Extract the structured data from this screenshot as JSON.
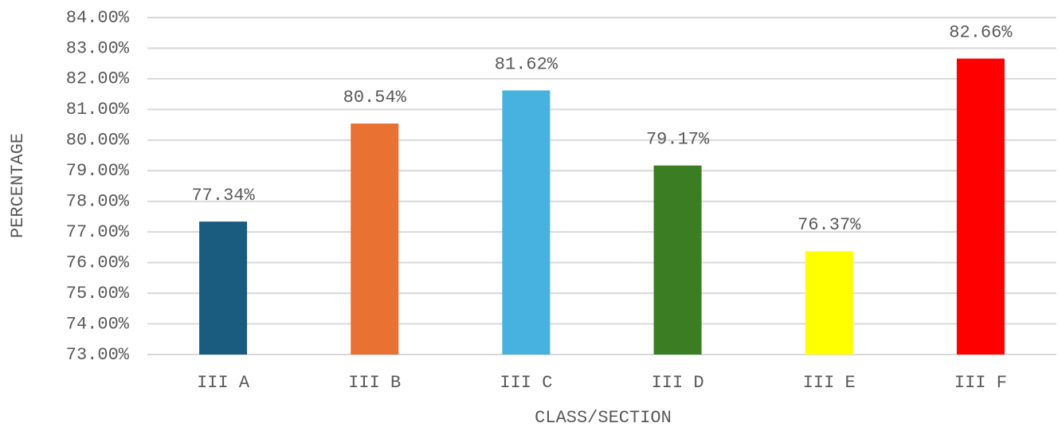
{
  "chart_data": {
    "type": "bar",
    "x_label": "CLASS/SECTION",
    "y_label": "PERCENTAGE",
    "categories": [
      "III A",
      "III B",
      "III C",
      "III D",
      "III E",
      "III F"
    ],
    "values": [
      77.34,
      80.54,
      81.62,
      79.17,
      76.37,
      82.66
    ],
    "value_labels": [
      "77.34%",
      "80.54%",
      "81.62%",
      "79.17%",
      "76.37%",
      "82.66%"
    ],
    "colors": [
      "#1a5c80",
      "#e97132",
      "#47b1e0",
      "#3b7d23",
      "#ffff00",
      "#ff0000"
    ],
    "ylim": [
      73,
      84
    ],
    "yticks": [
      {
        "value": 73,
        "label": "73.00%"
      },
      {
        "value": 74,
        "label": "74.00%"
      },
      {
        "value": 75,
        "label": "75.00%"
      },
      {
        "value": 76,
        "label": "76.00%"
      },
      {
        "value": 77,
        "label": "77.00%"
      },
      {
        "value": 78,
        "label": "78.00%"
      },
      {
        "value": 79,
        "label": "79.00%"
      },
      {
        "value": 80,
        "label": "80.00%"
      },
      {
        "value": 81,
        "label": "81.00%"
      },
      {
        "value": 82,
        "label": "82.00%"
      },
      {
        "value": 83,
        "label": "83.00%"
      },
      {
        "value": 84,
        "label": "84.00%"
      }
    ],
    "grid": true
  }
}
